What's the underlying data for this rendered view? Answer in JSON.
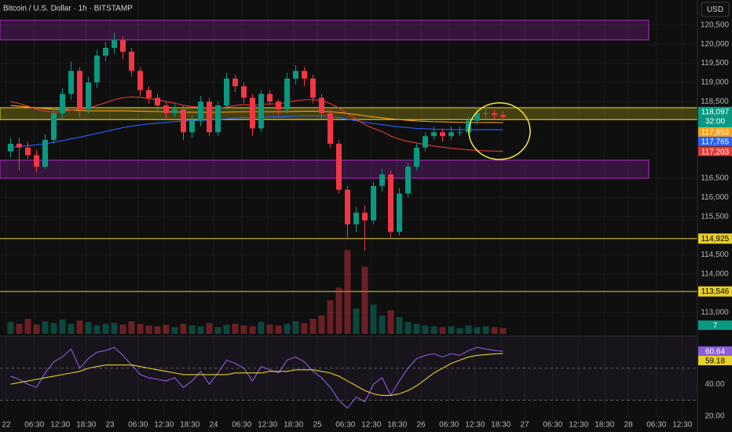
{
  "chart_data": [
    {
      "type": "candlestick",
      "title": "Bitcoin / U.S. Dollar · 1h · BITSTAMP",
      "currency": "USD",
      "open": [
        117200,
        117400,
        117300,
        117100,
        116800,
        117500,
        118200,
        118700,
        119300,
        118300,
        119000,
        119700,
        119900,
        120100,
        119800,
        119300,
        118800,
        118600,
        118400,
        118200,
        118300,
        117700,
        118000,
        118500,
        117700,
        118400,
        119100,
        118900,
        118600,
        117800,
        118700,
        118500,
        118300,
        119100,
        119300,
        119100,
        118600,
        118200,
        117400,
        116200,
        115300,
        115600,
        115400,
        116300,
        116600,
        115100,
        116100,
        116800,
        117300,
        117600,
        117700,
        117600,
        117700,
        117700,
        118000,
        118200,
        118200,
        118150
      ],
      "high": [
        117550,
        117550,
        117450,
        117250,
        117650,
        118350,
        118850,
        119550,
        119400,
        119150,
        119850,
        120050,
        120300,
        120200,
        119900,
        119400,
        118900,
        118700,
        118500,
        118450,
        118400,
        118150,
        118650,
        118600,
        118500,
        119250,
        119200,
        119000,
        118700,
        118800,
        118800,
        118550,
        119250,
        119450,
        119400,
        119200,
        118700,
        118300,
        117500,
        116300,
        115750,
        115800,
        116400,
        116750,
        116700,
        116250,
        116900,
        117400,
        117700,
        117850,
        117800,
        117850,
        117850,
        118100,
        118350,
        118350,
        118300,
        118250
      ],
      "low": [
        117050,
        116700,
        117000,
        116650,
        116750,
        117400,
        118050,
        118550,
        118100,
        118200,
        118850,
        119550,
        119750,
        119600,
        119150,
        118650,
        118450,
        118250,
        118050,
        118100,
        117500,
        117550,
        117850,
        117600,
        117600,
        118300,
        118750,
        118450,
        117600,
        117700,
        118400,
        118150,
        118200,
        118950,
        118900,
        118450,
        118050,
        117300,
        116100,
        114950,
        115100,
        114600,
        115300,
        116150,
        114950,
        115000,
        116000,
        116700,
        117200,
        117500,
        117450,
        117500,
        117600,
        117650,
        117900,
        118050,
        118050,
        118000
      ],
      "close": [
        117400,
        117300,
        117100,
        116800,
        117500,
        118200,
        118700,
        119300,
        118300,
        119000,
        119700,
        119900,
        120100,
        119800,
        119300,
        118800,
        118600,
        118400,
        118200,
        118300,
        117700,
        118000,
        118500,
        117700,
        118400,
        119100,
        118900,
        118600,
        117800,
        118700,
        118500,
        118300,
        119100,
        119300,
        119100,
        118600,
        118200,
        117400,
        116200,
        115300,
        115600,
        115400,
        116300,
        116600,
        115100,
        116100,
        116800,
        117300,
        117600,
        117700,
        117600,
        117700,
        117700,
        118000,
        118200,
        118200,
        118150,
        118097
      ],
      "close_label": "118,097",
      "countdown": "32:00",
      "up_color": "#089981",
      "down_color": "#f23645",
      "ylim": [
        112400,
        121150
      ],
      "yticks": [
        {
          "value": 120500,
          "label": "120,500"
        },
        {
          "value": 120000,
          "label": "120,000"
        },
        {
          "value": 119500,
          "label": "119,500"
        },
        {
          "value": 119000,
          "label": "119,000"
        },
        {
          "value": 118500,
          "label": "118,500"
        },
        {
          "value": 116500,
          "label": "116,500"
        },
        {
          "value": 116000,
          "label": "116,000"
        },
        {
          "value": 115500,
          "label": "115,500"
        },
        {
          "value": 114500,
          "label": "114,500"
        },
        {
          "value": 114000,
          "label": "114,000"
        },
        {
          "value": 113000,
          "label": "113,000"
        }
      ],
      "grid": true,
      "xtick_labels": [
        "22",
        "06:30",
        "12:30",
        "18:30",
        "23",
        "06:30",
        "12:30",
        "18:30",
        "24",
        "06:30",
        "12:30",
        "18:30",
        "25",
        "06:30",
        "12:30",
        "18:30",
        "26",
        "06:30",
        "12:30",
        "18:30",
        "27",
        "06:30",
        "12:30",
        "18:30",
        "28",
        "06:30",
        "12:30"
      ],
      "volume": {
        "values": [
          14,
          12,
          18,
          11,
          15,
          13,
          17,
          12,
          16,
          14,
          10,
          12,
          13,
          11,
          15,
          12,
          10,
          9,
          11,
          8,
          12,
          10,
          9,
          13,
          8,
          11,
          12,
          10,
          9,
          14,
          11,
          10,
          12,
          15,
          13,
          18,
          22,
          40,
          55,
          100,
          30,
          80,
          35,
          22,
          28,
          20,
          14,
          12,
          10,
          9,
          8,
          9,
          7,
          10,
          8,
          9,
          8,
          7
        ],
        "vlim": [
          0,
          400
        ]
      },
      "ma": [
        {
          "color": "#f7a21b",
          "last_label": "117,953",
          "values": [
            118400,
            118380,
            118360,
            118340,
            118320,
            118300,
            118290,
            118280,
            118270,
            118260,
            118260,
            118260,
            118260,
            118260,
            118255,
            118250,
            118245,
            118240,
            118235,
            118230,
            118225,
            118220,
            118220,
            118220,
            118220,
            118225,
            118230,
            118235,
            118235,
            118235,
            118235,
            118235,
            118240,
            118245,
            118250,
            118250,
            118245,
            118235,
            118215,
            118190,
            118160,
            118130,
            118100,
            118075,
            118050,
            118030,
            118010,
            117995,
            117985,
            117975,
            117970,
            117965,
            117960,
            117958,
            117956,
            117955,
            117954,
            117953
          ]
        },
        {
          "color": "#2962ff",
          "last_label": "117,765",
          "values": [
            117300,
            117330,
            117350,
            117370,
            117400,
            117440,
            117480,
            117530,
            117570,
            117620,
            117670,
            117720,
            117770,
            117820,
            117860,
            117890,
            117920,
            117940,
            117960,
            117980,
            117990,
            118000,
            118010,
            118020,
            118030,
            118050,
            118070,
            118080,
            118080,
            118090,
            118100,
            118100,
            118110,
            118120,
            118130,
            118130,
            118130,
            118110,
            118080,
            118040,
            118000,
            117960,
            117930,
            117900,
            117870,
            117840,
            117820,
            117800,
            117790,
            117780,
            117775,
            117770,
            117768,
            117766,
            117765,
            117765,
            117765,
            117765
          ]
        },
        {
          "color": "#e53935",
          "last_label": "117,203",
          "values": [
            118500,
            118450,
            118380,
            118300,
            118250,
            118230,
            118240,
            118280,
            118300,
            118330,
            118400,
            118470,
            118550,
            118600,
            118620,
            118610,
            118580,
            118540,
            118500,
            118460,
            118400,
            118370,
            118360,
            118330,
            118320,
            118360,
            118400,
            118420,
            118400,
            118420,
            118440,
            118440,
            118480,
            118520,
            118550,
            118550,
            118520,
            118450,
            118330,
            118180,
            118040,
            117900,
            117800,
            117720,
            117600,
            117520,
            117460,
            117420,
            117380,
            117340,
            117310,
            117280,
            117260,
            117240,
            117225,
            117215,
            117208,
            117203
          ]
        }
      ],
      "zones": [
        {
          "top": 120620,
          "bottom": 120110,
          "color": "#9c27b0",
          "extend_right": false
        },
        {
          "top": 118340,
          "bottom": 118030,
          "color": "#d4c21e",
          "extend_right": true
        },
        {
          "top": 116970,
          "bottom": 116500,
          "color": "#9c27b0",
          "extend_right": false
        }
      ],
      "levels": [
        {
          "value": 114925,
          "label": "114,925",
          "color": "#e8d02a"
        },
        {
          "value": 113546,
          "label": "113,546",
          "color": "#e8d02a"
        }
      ]
    },
    {
      "type": "line",
      "series": [
        {
          "color": "#8e5cd6",
          "values": [
            45,
            43,
            40,
            38,
            47,
            54,
            57,
            62,
            50,
            56,
            60,
            61,
            63,
            58,
            52,
            46,
            44,
            43,
            42,
            44,
            38,
            42,
            48,
            40,
            47,
            55,
            53,
            50,
            42,
            51,
            49,
            47,
            55,
            57,
            54,
            48,
            44,
            38,
            30,
            25,
            32,
            29,
            40,
            44,
            33,
            42,
            50,
            56,
            58,
            59,
            57,
            59,
            58,
            61,
            63,
            62,
            61,
            60.64
          ]
        },
        {
          "color": "#e8d02a",
          "values": [
            40,
            41,
            42,
            43,
            44,
            45,
            46,
            47,
            48,
            50,
            51,
            52,
            52,
            52,
            52,
            51,
            50,
            49,
            48,
            47,
            46,
            46,
            46,
            46,
            46,
            46,
            47,
            47,
            47,
            47,
            48,
            48,
            48,
            49,
            49,
            49,
            48,
            47,
            45,
            42,
            39,
            36,
            34,
            33,
            33,
            34,
            36,
            39,
            43,
            47,
            50,
            53,
            55,
            57,
            58,
            58.5,
            58.9,
            59.18
          ]
        }
      ],
      "ylim": [
        17.5,
        69
      ],
      "yticks": [
        {
          "value": 40,
          "label": "40.00"
        },
        {
          "value": 20,
          "label": "20.00"
        }
      ],
      "guides": [
        70,
        50,
        30
      ]
    }
  ]
}
